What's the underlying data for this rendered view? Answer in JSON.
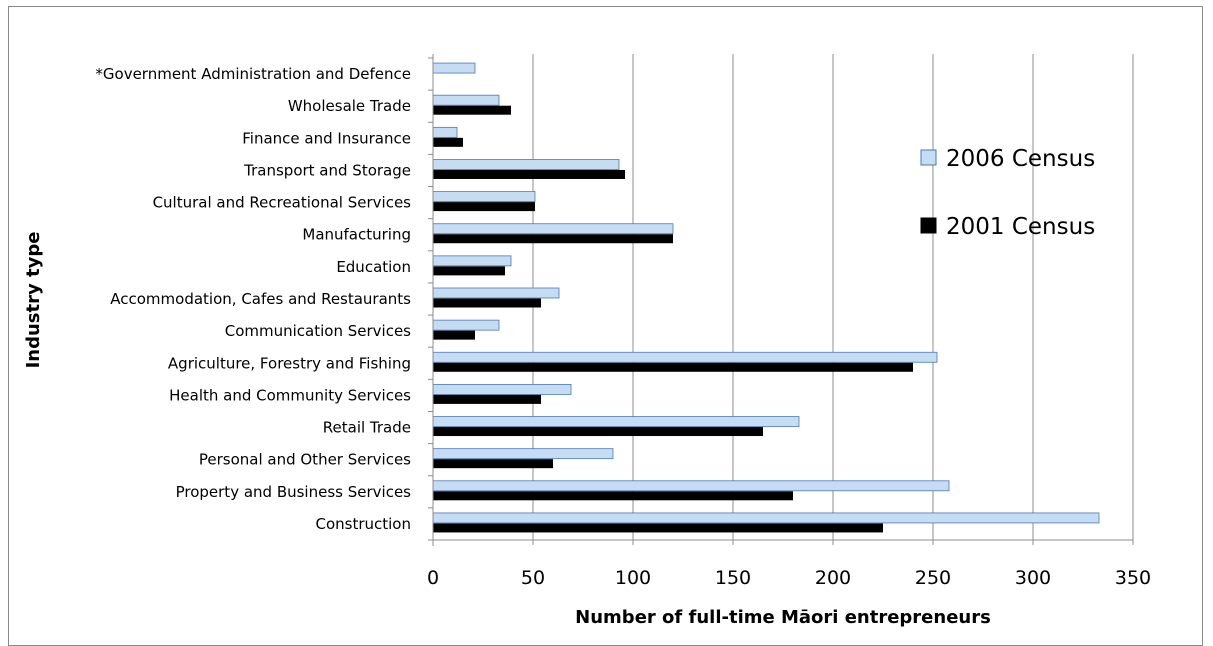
{
  "chart_data": {
    "type": "bar",
    "orientation": "horizontal",
    "xlabel": "Number of full-time Māori entrepreneurs",
    "ylabel": "Industry type",
    "xlim": [
      0,
      350
    ],
    "xticks": [
      "0",
      "50",
      "100",
      "150",
      "200",
      "250",
      "300",
      "350"
    ],
    "xtick_values": [
      0,
      50,
      100,
      150,
      200,
      250,
      300,
      350
    ],
    "grid": "vertical",
    "legend_position": "right",
    "colors": {
      "2006 Census": "#c6dcf2",
      "2001 Census": "#000000",
      "grid": "#8c8c8c",
      "bar_border": "#4a7ab8"
    },
    "categories": [
      "*Government Administration and Defence",
      "Wholesale Trade",
      "Finance and Insurance",
      "Transport and Storage",
      "Cultural and Recreational Services",
      "Manufacturing",
      "Education",
      "Accommodation, Cafes and Restaurants",
      "Communication Services",
      "Agriculture, Forestry and Fishing",
      "Health and Community Services",
      "Retail Trade",
      "Personal and Other Services",
      "Property and Business Services",
      "Construction"
    ],
    "series": [
      {
        "name": "2006 Census",
        "values": [
          21,
          33,
          12,
          93,
          51,
          120,
          39,
          63,
          33,
          252,
          69,
          183,
          90,
          258,
          333
        ]
      },
      {
        "name": "2001 Census",
        "values": [
          0,
          39,
          15,
          96,
          51,
          120,
          36,
          54,
          21,
          240,
          54,
          165,
          60,
          180,
          225
        ]
      }
    ]
  }
}
